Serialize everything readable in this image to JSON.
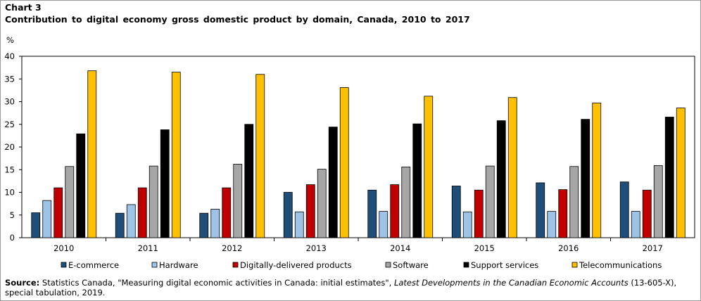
{
  "chart_label": "Chart 3",
  "title": "Contribution to digital economy gross domestic product by domain, Canada, 2010 to 2017",
  "footnote": {
    "source_label": "Source:",
    "text_before": "Statistics Canada, \"Measuring digital economic activities in Canada: initial estimates\", ",
    "italic_title": "Latest Developments in the Canadian Economic Accounts",
    "text_after": " (13-605-X), special tabulation, 2019."
  },
  "chart_data": {
    "type": "bar",
    "ylabel": "%",
    "ylim": [
      0,
      40
    ],
    "yticks": [
      0,
      5,
      10,
      15,
      20,
      25,
      30,
      35,
      40
    ],
    "grid": false,
    "legend_position": "bottom",
    "categories": [
      "2010",
      "2011",
      "2012",
      "2013",
      "2014",
      "2015",
      "2016",
      "2017"
    ],
    "series": [
      {
        "name": "E-commerce",
        "color": "#1f4e79",
        "values": [
          5.5,
          5.4,
          5.4,
          10.0,
          10.5,
          11.4,
          12.1,
          12.3
        ]
      },
      {
        "name": "Hardware",
        "color": "#9dc3e6",
        "values": [
          8.2,
          7.3,
          6.3,
          5.7,
          5.8,
          5.7,
          5.8,
          5.8
        ]
      },
      {
        "name": "Digitally-delivered products",
        "color": "#c00000",
        "values": [
          11.0,
          11.0,
          11.0,
          11.7,
          11.7,
          10.5,
          10.6,
          10.5
        ]
      },
      {
        "name": "Software",
        "color": "#a6a6a6",
        "values": [
          15.7,
          15.8,
          16.2,
          15.1,
          15.6,
          15.8,
          15.7,
          15.9
        ]
      },
      {
        "name": "Support services",
        "color": "#000000",
        "values": [
          22.9,
          23.8,
          25.0,
          24.4,
          25.1,
          25.8,
          26.1,
          26.6
        ]
      },
      {
        "name": "Telecommunications",
        "color": "#ffc000",
        "values": [
          36.8,
          36.5,
          36.0,
          33.1,
          31.2,
          30.9,
          29.7,
          28.6
        ]
      }
    ]
  }
}
